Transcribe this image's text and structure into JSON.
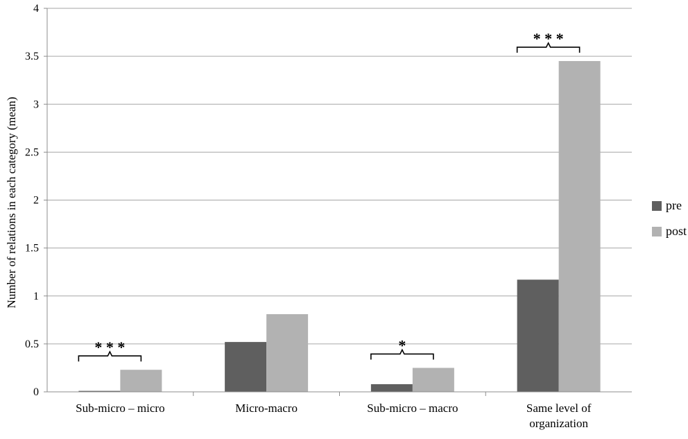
{
  "chart_data": {
    "type": "bar",
    "categories": [
      [
        "Sub-micro – micro"
      ],
      [
        "Micro-macro"
      ],
      [
        "Sub-micro – macro"
      ],
      [
        "Same level of",
        "organization"
      ]
    ],
    "series": [
      {
        "name": "pre",
        "color": "#5f5f5f",
        "values": [
          0.01,
          0.52,
          0.08,
          1.17
        ]
      },
      {
        "name": "post",
        "color": "#b2b2b2",
        "values": [
          0.23,
          0.81,
          0.25,
          3.45
        ]
      }
    ],
    "ylabel": "Number of relations in each category  (mean)",
    "ylim": [
      0,
      4
    ],
    "yticks": [
      "0",
      "0.5",
      "1",
      "1.5",
      "2",
      "2.5",
      "3",
      "3.5",
      "4"
    ],
    "grid": true,
    "legend_position": "right",
    "annotations": [
      {
        "category_index": 0,
        "text": "* * *"
      },
      {
        "category_index": 2,
        "text": "*"
      },
      {
        "category_index": 3,
        "text": "* * *"
      }
    ]
  }
}
